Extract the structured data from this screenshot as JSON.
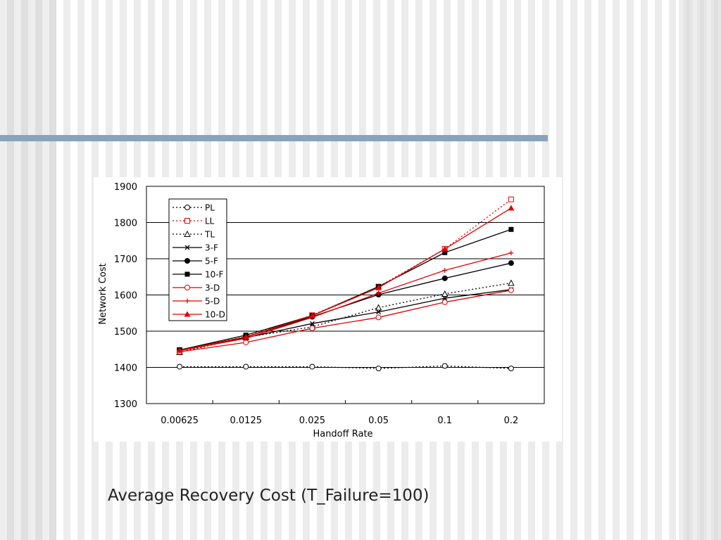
{
  "caption": "Average Recovery Cost (T_Failure=100)",
  "colors": {
    "accent_bar": "#8aa3bd",
    "black_series": "#000000",
    "red_series": "#e00000"
  },
  "chart_data": {
    "type": "line",
    "title": "",
    "xlabel": "Handoff Rate",
    "ylabel": "Network Cost",
    "categories": [
      "0.00625",
      "0.0125",
      "0.025",
      "0.05",
      "0.1",
      "0.2"
    ],
    "ylim": [
      1300,
      1900
    ],
    "yticks": [
      1300,
      1400,
      1500,
      1600,
      1700,
      1800,
      1900
    ],
    "grid": "horizontal",
    "legend_position": "top-left",
    "series": [
      {
        "name": "PL",
        "values": [
          1402,
          1402,
          1402,
          1397,
          1404,
          1397
        ],
        "color": "#000000",
        "dash": "dotted",
        "marker": "open-circle"
      },
      {
        "name": "LL",
        "values": [
          1448,
          1485,
          1544,
          1623,
          1727,
          1864
        ],
        "color": "#e00000",
        "dash": "dotted",
        "marker": "open-square"
      },
      {
        "name": "TL",
        "values": [
          1442,
          1483,
          1512,
          1565,
          1603,
          1633
        ],
        "color": "#000000",
        "dash": "dotted",
        "marker": "open-triangle"
      },
      {
        "name": "3-F",
        "values": [
          1447,
          1482,
          1521,
          1553,
          1591,
          1615
        ],
        "color": "#000000",
        "dash": "solid",
        "marker": "x"
      },
      {
        "name": "5-F",
        "values": [
          1448,
          1484,
          1540,
          1601,
          1646,
          1688
        ],
        "color": "#000000",
        "dash": "solid",
        "marker": "filled-circle"
      },
      {
        "name": "10-F",
        "values": [
          1448,
          1489,
          1543,
          1623,
          1717,
          1781
        ],
        "color": "#000000",
        "dash": "solid",
        "marker": "filled-square"
      },
      {
        "name": "3-D",
        "values": [
          1443,
          1469,
          1508,
          1538,
          1580,
          1613
        ],
        "color": "#e00000",
        "dash": "solid",
        "marker": "open-circle"
      },
      {
        "name": "5-D",
        "values": [
          1446,
          1480,
          1538,
          1605,
          1668,
          1716
        ],
        "color": "#e00000",
        "dash": "solid",
        "marker": "plus"
      },
      {
        "name": "10-D",
        "values": [
          1447,
          1484,
          1543,
          1620,
          1727,
          1840
        ],
        "color": "#e00000",
        "dash": "solid",
        "marker": "filled-triangle"
      }
    ]
  }
}
